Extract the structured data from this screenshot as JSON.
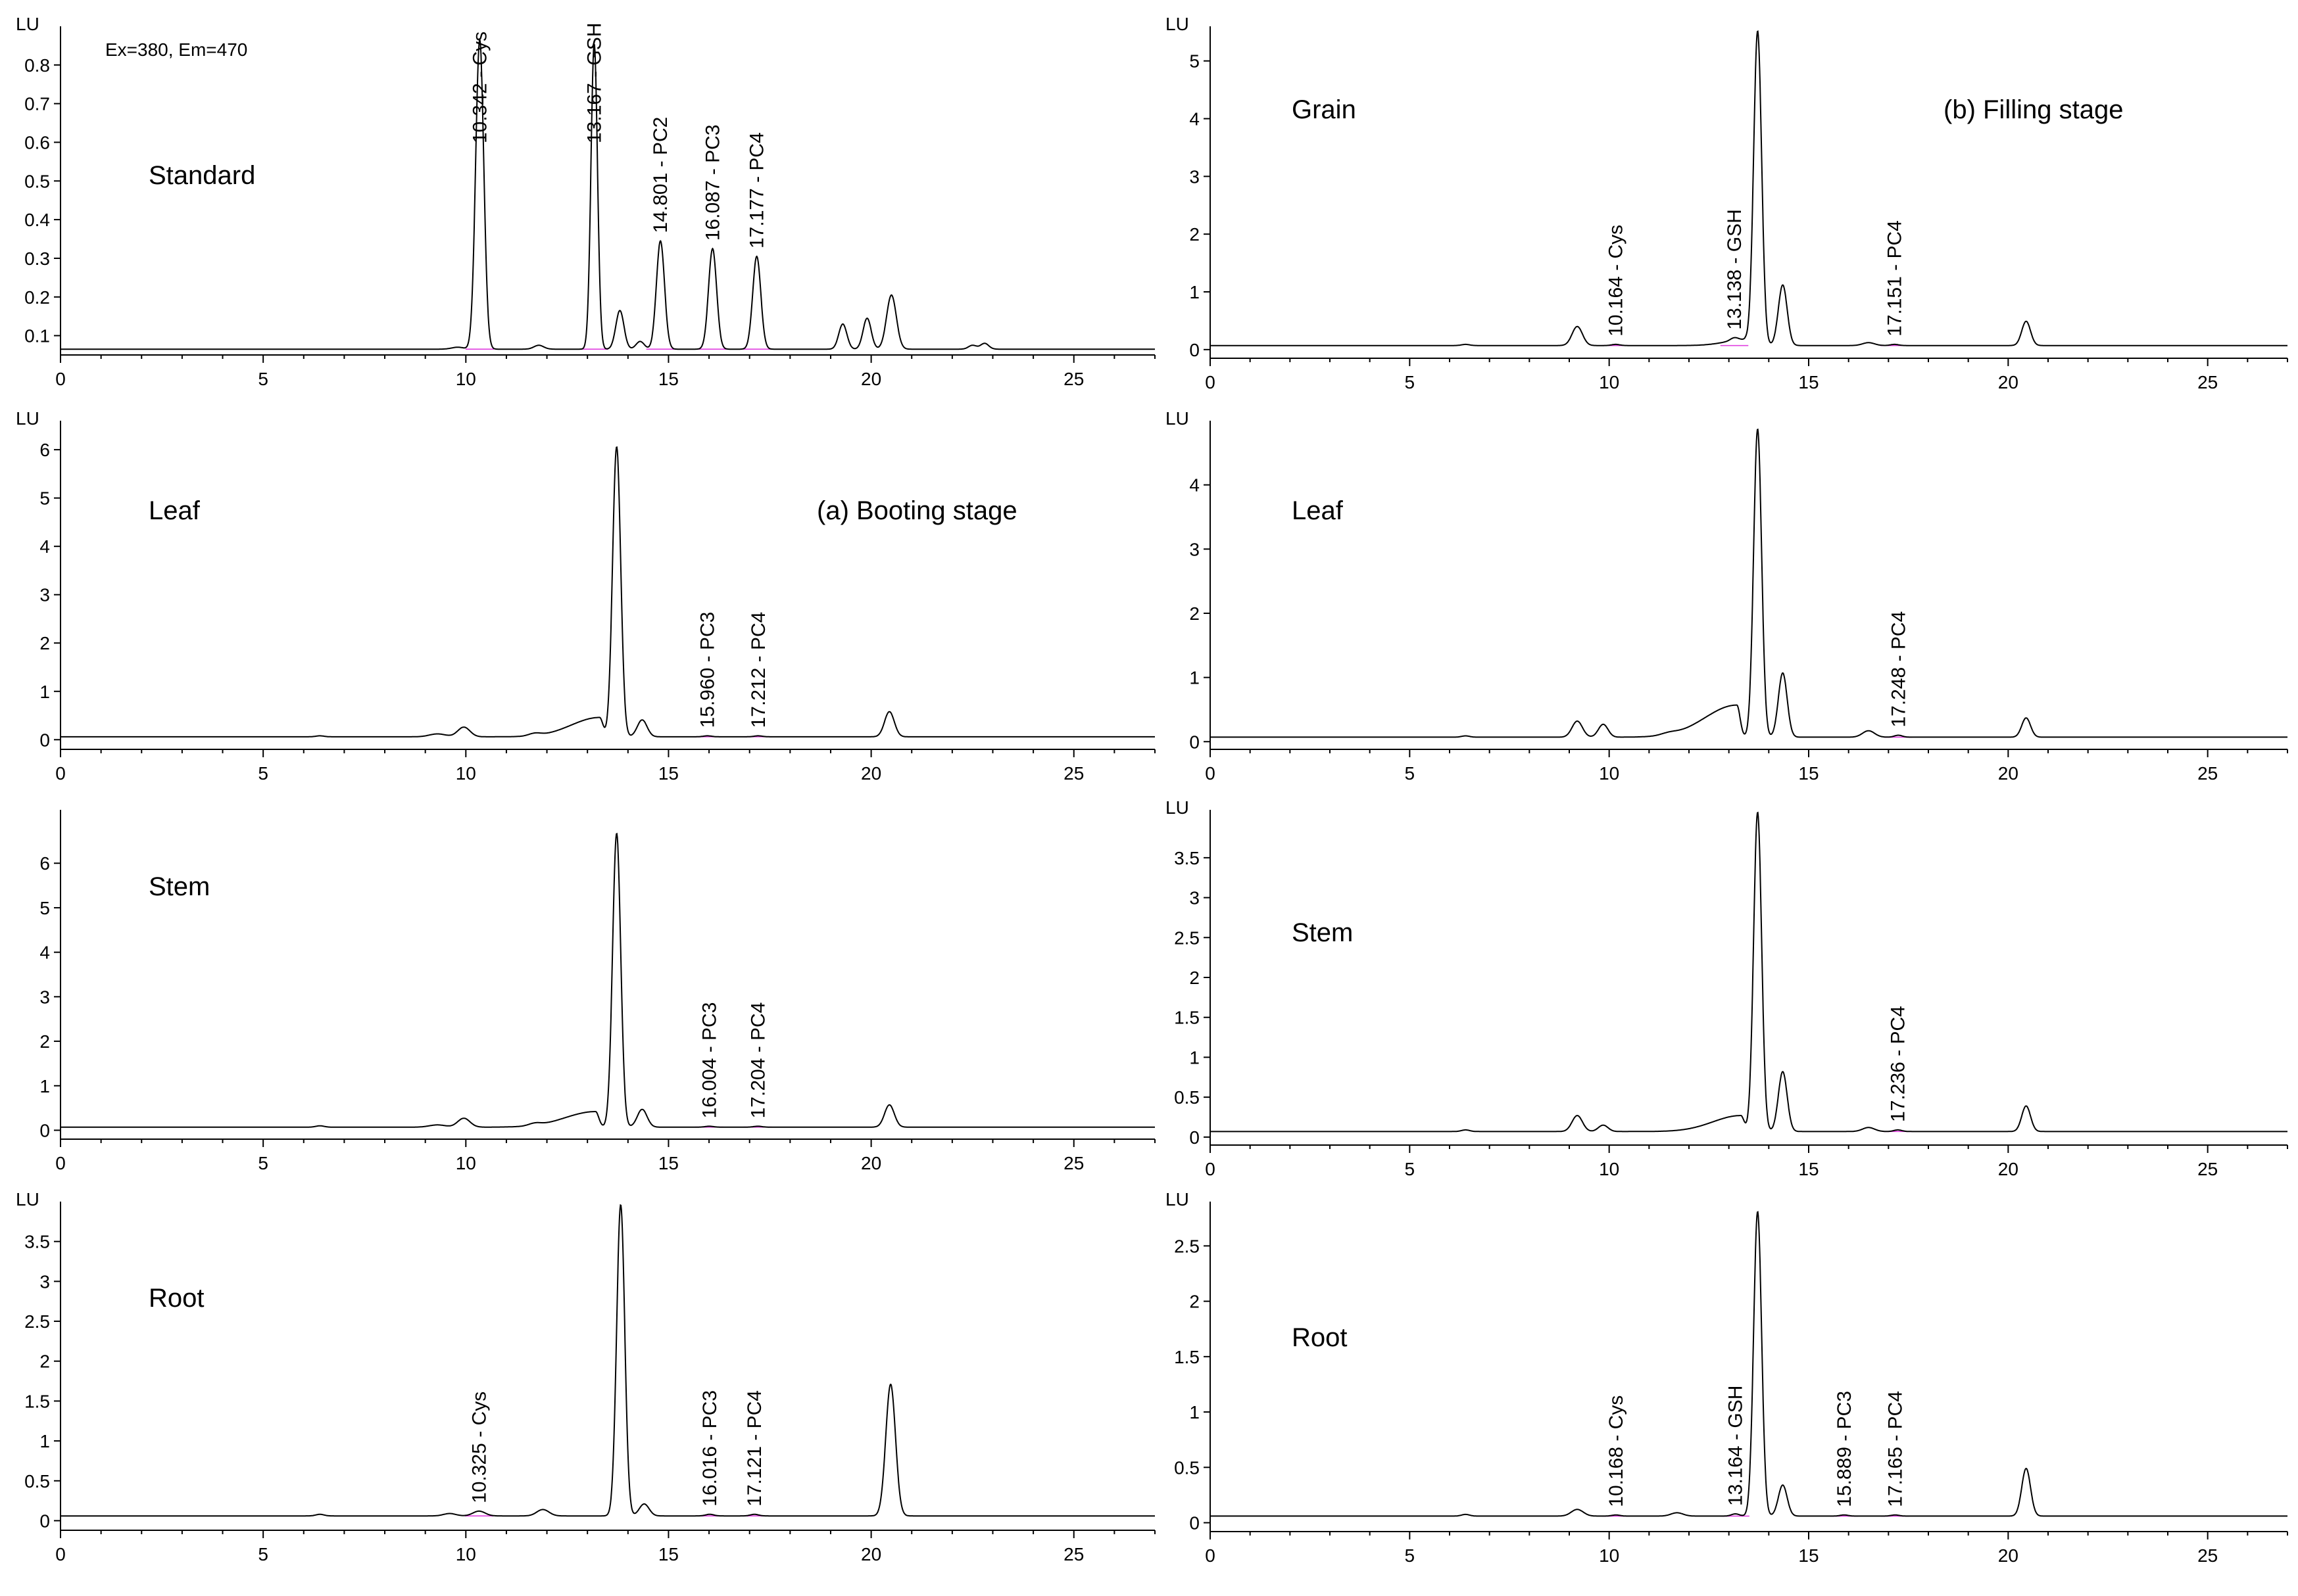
{
  "chart_data": [
    {
      "type": "line",
      "panel": "a1",
      "axis_unit": "LU",
      "text": "Standard",
      "stage_label": "",
      "note": "Ex=380, Em=470",
      "xlim": [
        0,
        27
      ],
      "xticks": [
        0,
        5,
        10,
        15,
        20,
        25
      ],
      "ylim": [
        0.05,
        0.9
      ],
      "yticks": [
        0.1,
        0.2,
        0.3,
        0.4,
        0.5,
        0.6,
        0.7,
        0.8
      ],
      "baseline": 0.065,
      "peaks": [
        [
          9.8,
          0.005,
          0.15
        ],
        [
          10.342,
          0.8,
          0.1
        ],
        [
          11.8,
          0.01,
          0.12
        ],
        [
          13.167,
          0.79,
          0.08
        ],
        [
          13.8,
          0.1,
          0.1
        ],
        [
          14.3,
          0.02,
          0.1
        ],
        [
          14.801,
          0.28,
          0.1
        ],
        [
          16.087,
          0.26,
          0.1
        ],
        [
          17.177,
          0.24,
          0.1
        ],
        [
          19.3,
          0.065,
          0.1
        ],
        [
          19.9,
          0.08,
          0.1
        ],
        [
          20.5,
          0.14,
          0.12
        ],
        [
          22.5,
          0.01,
          0.1
        ],
        [
          22.8,
          0.015,
          0.1
        ]
      ],
      "peak_labels": [
        "10.342 - Cys",
        "13.167 - GSH",
        "14.801 - PC2",
        "16.087 - PC3",
        "17.177 - PC4"
      ],
      "peak_label_x": [
        10.342,
        13.167,
        14.801,
        16.087,
        17.177
      ]
    },
    {
      "type": "line",
      "panel": "a2",
      "axis_unit": "LU",
      "text": "Leaf",
      "stage_label": "(a) Booting stage",
      "note": "",
      "xlim": [
        0,
        27
      ],
      "xticks": [
        0,
        5,
        10,
        15,
        20,
        25
      ],
      "ylim": [
        -0.2,
        6.6
      ],
      "yticks": [
        0,
        1,
        2,
        3,
        4,
        5,
        6
      ],
      "baseline": 0.06,
      "hump": [
        13.3,
        0.4,
        0.7
      ],
      "peaks": [
        [
          6.4,
          0.02,
          0.1
        ],
        [
          9.3,
          0.06,
          0.2
        ],
        [
          9.95,
          0.2,
          0.15
        ],
        [
          11.7,
          0.05,
          0.15
        ],
        [
          13.72,
          6.0,
          0.1
        ],
        [
          14.35,
          0.35,
          0.12
        ],
        [
          15.96,
          0.02,
          0.1
        ],
        [
          17.212,
          0.02,
          0.1
        ],
        [
          20.45,
          0.52,
          0.12
        ]
      ],
      "peak_labels": [
        "15.960 - PC3",
        "17.212 - PC4"
      ],
      "peak_label_x": [
        15.96,
        17.212
      ]
    },
    {
      "type": "line",
      "panel": "a3",
      "axis_unit": "",
      "text": "Stem",
      "stage_label": "",
      "note": "",
      "xlim": [
        0,
        27
      ],
      "xticks": [
        0,
        5,
        10,
        15,
        20,
        25
      ],
      "ylim": [
        -0.2,
        7.2
      ],
      "yticks": [
        0,
        1,
        2,
        3,
        4,
        5,
        6
      ],
      "baseline": 0.07,
      "hump": [
        13.2,
        0.35,
        0.75
      ],
      "peaks": [
        [
          6.4,
          0.03,
          0.1
        ],
        [
          9.3,
          0.05,
          0.2
        ],
        [
          9.95,
          0.2,
          0.15
        ],
        [
          11.7,
          0.05,
          0.15
        ],
        [
          13.72,
          6.6,
          0.1
        ],
        [
          14.35,
          0.4,
          0.12
        ],
        [
          16.004,
          0.02,
          0.1
        ],
        [
          17.204,
          0.02,
          0.1
        ],
        [
          20.45,
          0.5,
          0.12
        ]
      ],
      "peak_labels": [
        "16.004 - PC3",
        "17.204 - PC4"
      ],
      "peak_label_x": [
        16.004,
        17.204
      ]
    },
    {
      "type": "line",
      "panel": "a4",
      "axis_unit": "LU",
      "text": "Root",
      "stage_label": "",
      "note": "",
      "xlim": [
        0,
        27
      ],
      "xticks": [
        0,
        5,
        10,
        15,
        20,
        25
      ],
      "ylim": [
        -0.12,
        4.0
      ],
      "yticks": [
        0,
        0.5,
        1,
        1.5,
        2,
        2.5,
        3,
        3.5
      ],
      "baseline": 0.06,
      "peaks": [
        [
          6.4,
          0.02,
          0.1
        ],
        [
          9.6,
          0.03,
          0.15
        ],
        [
          10.325,
          0.06,
          0.15
        ],
        [
          11.9,
          0.08,
          0.15
        ],
        [
          13.82,
          3.9,
          0.1
        ],
        [
          14.4,
          0.15,
          0.12
        ],
        [
          16.016,
          0.02,
          0.1
        ],
        [
          17.121,
          0.02,
          0.1
        ],
        [
          20.48,
          1.65,
          0.12
        ]
      ],
      "peak_labels": [
        "10.325 - Cys",
        "16.016 - PC3",
        "17.121 - PC4"
      ],
      "peak_label_x": [
        10.325,
        16.016,
        17.121
      ]
    },
    {
      "type": "line",
      "panel": "b1",
      "axis_unit": "LU",
      "text": "Grain",
      "stage_label": "(b) Filling stage",
      "note": "",
      "xlim": [
        0,
        27
      ],
      "xticks": [
        0,
        5,
        10,
        15,
        20,
        25
      ],
      "ylim": [
        -0.15,
        5.6
      ],
      "yticks": [
        0,
        1,
        2,
        3,
        4,
        5
      ],
      "baseline": 0.07,
      "hump": [
        13.4,
        0.1,
        0.5
      ],
      "peaks": [
        [
          6.4,
          0.02,
          0.1
        ],
        [
          9.2,
          0.33,
          0.13
        ],
        [
          10.164,
          0.02,
          0.1
        ],
        [
          13.138,
          0.05,
          0.1
        ],
        [
          13.72,
          5.45,
          0.1
        ],
        [
          14.35,
          1.05,
          0.11
        ],
        [
          16.5,
          0.05,
          0.15
        ],
        [
          17.151,
          0.02,
          0.1
        ],
        [
          20.45,
          0.42,
          0.11
        ]
      ],
      "peak_labels": [
        "10.164 - Cys",
        "13.138 - GSH",
        "17.151 - PC4"
      ],
      "peak_label_x": [
        10.164,
        13.138,
        17.151
      ]
    },
    {
      "type": "line",
      "panel": "b2",
      "axis_unit": "LU",
      "text": "Leaf",
      "stage_label": "",
      "note": "",
      "xlim": [
        0,
        27
      ],
      "xticks": [
        0,
        5,
        10,
        15,
        20,
        25
      ],
      "ylim": [
        -0.12,
        5.0
      ],
      "yticks": [
        0,
        1,
        2,
        3,
        4
      ],
      "baseline": 0.07,
      "hump": [
        13.2,
        0.5,
        0.8
      ],
      "peaks": [
        [
          6.4,
          0.02,
          0.1
        ],
        [
          9.2,
          0.25,
          0.13
        ],
        [
          9.85,
          0.2,
          0.12
        ],
        [
          11.5,
          0.03,
          0.2
        ],
        [
          13.72,
          4.8,
          0.1
        ],
        [
          14.35,
          1.0,
          0.11
        ],
        [
          16.5,
          0.1,
          0.15
        ],
        [
          17.248,
          0.03,
          0.1
        ],
        [
          20.45,
          0.3,
          0.11
        ]
      ],
      "peak_labels": [
        "17.248 - PC4"
      ],
      "peak_label_x": [
        17.248
      ]
    },
    {
      "type": "line",
      "panel": "b3",
      "axis_unit": "LU",
      "text": "Stem",
      "stage_label": "",
      "note": "",
      "xlim": [
        0,
        27
      ],
      "xticks": [
        0,
        5,
        10,
        15,
        20,
        25
      ],
      "ylim": [
        -0.1,
        4.1
      ],
      "yticks": [
        0,
        0.5,
        1,
        1.5,
        2,
        2.5,
        3,
        3.5
      ],
      "baseline": 0.07,
      "hump": [
        13.3,
        0.2,
        0.7
      ],
      "peaks": [
        [
          6.4,
          0.02,
          0.1
        ],
        [
          9.2,
          0.2,
          0.13
        ],
        [
          9.85,
          0.08,
          0.12
        ],
        [
          13.72,
          4.0,
          0.1
        ],
        [
          14.35,
          0.75,
          0.11
        ],
        [
          16.5,
          0.05,
          0.15
        ],
        [
          17.236,
          0.02,
          0.1
        ],
        [
          20.45,
          0.32,
          0.11
        ]
      ],
      "peak_labels": [
        "17.236 - PC4"
      ],
      "peak_label_x": [
        17.236
      ]
    },
    {
      "type": "line",
      "panel": "b4",
      "axis_unit": "LU",
      "text": "Root",
      "stage_label": "",
      "note": "",
      "xlim": [
        0,
        27
      ],
      "xticks": [
        0,
        5,
        10,
        15,
        20,
        25
      ],
      "ylim": [
        -0.08,
        2.9
      ],
      "yticks": [
        0,
        0.5,
        1,
        1.5,
        2,
        2.5
      ],
      "baseline": 0.06,
      "peaks": [
        [
          6.4,
          0.015,
          0.1
        ],
        [
          9.2,
          0.06,
          0.15
        ],
        [
          10.168,
          0.01,
          0.1
        ],
        [
          11.7,
          0.03,
          0.15
        ],
        [
          13.164,
          0.02,
          0.1
        ],
        [
          13.72,
          2.75,
          0.1
        ],
        [
          14.35,
          0.28,
          0.11
        ],
        [
          15.889,
          0.01,
          0.1
        ],
        [
          17.165,
          0.01,
          0.1
        ],
        [
          20.45,
          0.43,
          0.11
        ]
      ],
      "peak_labels": [
        "10.168 - Cys",
        "13.164 - GSH",
        "15.889 - PC3",
        "17.165 - PC4"
      ],
      "peak_label_x": [
        10.168,
        13.164,
        15.889,
        17.165
      ]
    }
  ]
}
